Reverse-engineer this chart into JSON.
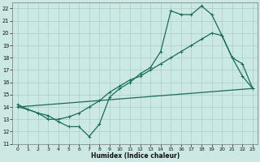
{
  "xlabel": "Humidex (Indice chaleur)",
  "bg_color": "#cce8e5",
  "grid_color": "#aacfcc",
  "line_color": "#1a6b5a",
  "xlim": [
    -0.5,
    23.5
  ],
  "ylim": [
    11,
    22.5
  ],
  "xticks": [
    0,
    1,
    2,
    3,
    4,
    5,
    6,
    7,
    8,
    9,
    10,
    11,
    12,
    13,
    14,
    15,
    16,
    17,
    18,
    19,
    20,
    21,
    22,
    23
  ],
  "yticks": [
    11,
    12,
    13,
    14,
    15,
    16,
    17,
    18,
    19,
    20,
    21,
    22
  ],
  "line1_x": [
    0,
    1,
    2,
    3,
    4,
    5,
    6,
    7,
    8,
    9,
    10,
    11,
    12,
    13,
    14,
    15,
    16,
    17,
    18,
    19,
    20,
    21,
    22,
    23
  ],
  "line1_y": [
    14.2,
    13.8,
    13.5,
    13.3,
    12.8,
    12.4,
    12.4,
    11.6,
    12.6,
    14.8,
    15.5,
    16.0,
    16.7,
    17.2,
    18.5,
    21.8,
    21.5,
    21.5,
    22.2,
    21.5,
    19.8,
    18.0,
    16.5,
    15.5
  ],
  "line2_x": [
    0,
    23
  ],
  "line2_y": [
    14.0,
    15.5
  ],
  "line3_x": [
    0,
    1,
    2,
    3,
    4,
    5,
    6,
    7,
    8,
    9,
    10,
    11,
    12,
    13,
    14,
    15,
    16,
    17,
    18,
    19,
    20,
    21,
    22,
    23
  ],
  "line3_y": [
    14.0,
    13.8,
    13.5,
    13.0,
    13.0,
    13.2,
    13.5,
    14.0,
    14.5,
    15.2,
    15.7,
    16.2,
    16.5,
    17.0,
    17.5,
    18.0,
    18.5,
    19.0,
    19.5,
    20.0,
    19.8,
    18.0,
    17.5,
    15.5
  ]
}
